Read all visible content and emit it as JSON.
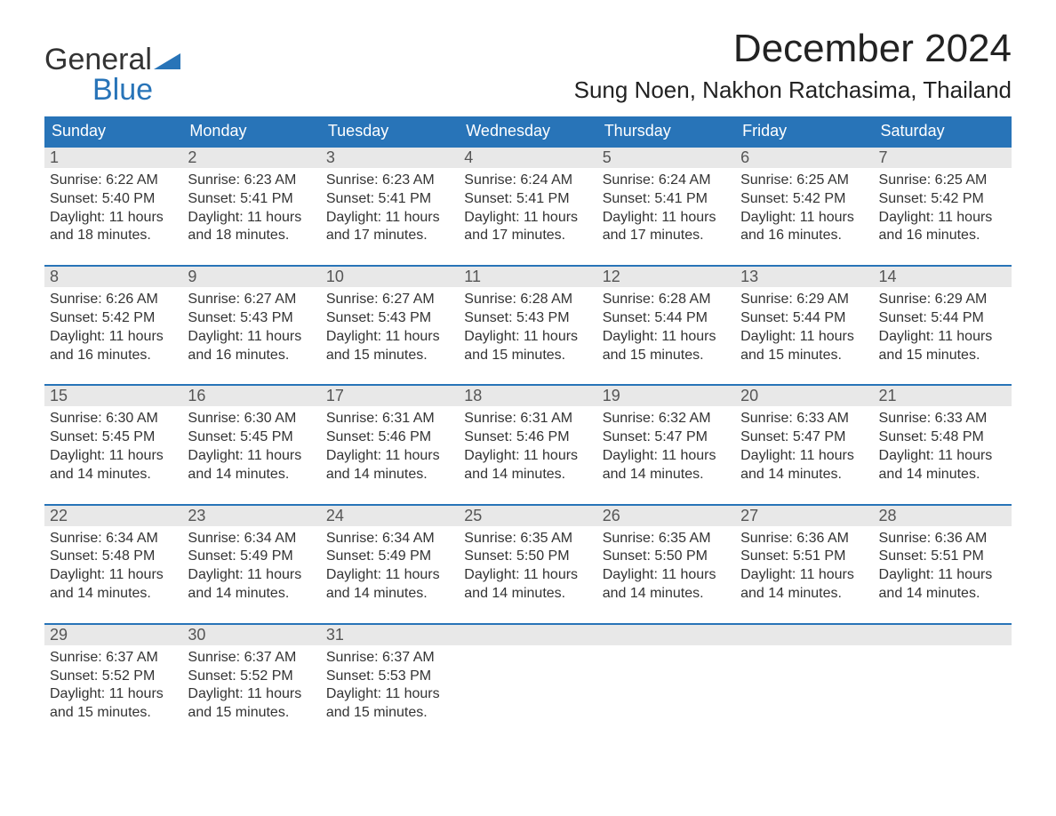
{
  "brand": {
    "line1": "General",
    "line2": "Blue",
    "accent_color": "#2874b8"
  },
  "title": "December 2024",
  "location": "Sung Noen, Nakhon Ratchasima, Thailand",
  "colors": {
    "header_bg": "#2874b8",
    "header_text": "#ffffff",
    "daynum_bg": "#e8e8e8",
    "daynum_text": "#555555",
    "body_text": "#333333",
    "week_border": "#2874b8",
    "page_bg": "#ffffff"
  },
  "typography": {
    "title_fontsize": 44,
    "location_fontsize": 26,
    "dow_fontsize": 18,
    "daynum_fontsize": 18,
    "detail_fontsize": 16,
    "font_family": "Arial"
  },
  "days_of_week": [
    "Sunday",
    "Monday",
    "Tuesday",
    "Wednesday",
    "Thursday",
    "Friday",
    "Saturday"
  ],
  "weeks": [
    {
      "cells": [
        {
          "n": "1",
          "sr": "Sunrise: 6:22 AM",
          "ss": "Sunset: 5:40 PM",
          "dl": "Daylight: 11 hours and 18 minutes."
        },
        {
          "n": "2",
          "sr": "Sunrise: 6:23 AM",
          "ss": "Sunset: 5:41 PM",
          "dl": "Daylight: 11 hours and 18 minutes."
        },
        {
          "n": "3",
          "sr": "Sunrise: 6:23 AM",
          "ss": "Sunset: 5:41 PM",
          "dl": "Daylight: 11 hours and 17 minutes."
        },
        {
          "n": "4",
          "sr": "Sunrise: 6:24 AM",
          "ss": "Sunset: 5:41 PM",
          "dl": "Daylight: 11 hours and 17 minutes."
        },
        {
          "n": "5",
          "sr": "Sunrise: 6:24 AM",
          "ss": "Sunset: 5:41 PM",
          "dl": "Daylight: 11 hours and 17 minutes."
        },
        {
          "n": "6",
          "sr": "Sunrise: 6:25 AM",
          "ss": "Sunset: 5:42 PM",
          "dl": "Daylight: 11 hours and 16 minutes."
        },
        {
          "n": "7",
          "sr": "Sunrise: 6:25 AM",
          "ss": "Sunset: 5:42 PM",
          "dl": "Daylight: 11 hours and 16 minutes."
        }
      ]
    },
    {
      "cells": [
        {
          "n": "8",
          "sr": "Sunrise: 6:26 AM",
          "ss": "Sunset: 5:42 PM",
          "dl": "Daylight: 11 hours and 16 minutes."
        },
        {
          "n": "9",
          "sr": "Sunrise: 6:27 AM",
          "ss": "Sunset: 5:43 PM",
          "dl": "Daylight: 11 hours and 16 minutes."
        },
        {
          "n": "10",
          "sr": "Sunrise: 6:27 AM",
          "ss": "Sunset: 5:43 PM",
          "dl": "Daylight: 11 hours and 15 minutes."
        },
        {
          "n": "11",
          "sr": "Sunrise: 6:28 AM",
          "ss": "Sunset: 5:43 PM",
          "dl": "Daylight: 11 hours and 15 minutes."
        },
        {
          "n": "12",
          "sr": "Sunrise: 6:28 AM",
          "ss": "Sunset: 5:44 PM",
          "dl": "Daylight: 11 hours and 15 minutes."
        },
        {
          "n": "13",
          "sr": "Sunrise: 6:29 AM",
          "ss": "Sunset: 5:44 PM",
          "dl": "Daylight: 11 hours and 15 minutes."
        },
        {
          "n": "14",
          "sr": "Sunrise: 6:29 AM",
          "ss": "Sunset: 5:44 PM",
          "dl": "Daylight: 11 hours and 15 minutes."
        }
      ]
    },
    {
      "cells": [
        {
          "n": "15",
          "sr": "Sunrise: 6:30 AM",
          "ss": "Sunset: 5:45 PM",
          "dl": "Daylight: 11 hours and 14 minutes."
        },
        {
          "n": "16",
          "sr": "Sunrise: 6:30 AM",
          "ss": "Sunset: 5:45 PM",
          "dl": "Daylight: 11 hours and 14 minutes."
        },
        {
          "n": "17",
          "sr": "Sunrise: 6:31 AM",
          "ss": "Sunset: 5:46 PM",
          "dl": "Daylight: 11 hours and 14 minutes."
        },
        {
          "n": "18",
          "sr": "Sunrise: 6:31 AM",
          "ss": "Sunset: 5:46 PM",
          "dl": "Daylight: 11 hours and 14 minutes."
        },
        {
          "n": "19",
          "sr": "Sunrise: 6:32 AM",
          "ss": "Sunset: 5:47 PM",
          "dl": "Daylight: 11 hours and 14 minutes."
        },
        {
          "n": "20",
          "sr": "Sunrise: 6:33 AM",
          "ss": "Sunset: 5:47 PM",
          "dl": "Daylight: 11 hours and 14 minutes."
        },
        {
          "n": "21",
          "sr": "Sunrise: 6:33 AM",
          "ss": "Sunset: 5:48 PM",
          "dl": "Daylight: 11 hours and 14 minutes."
        }
      ]
    },
    {
      "cells": [
        {
          "n": "22",
          "sr": "Sunrise: 6:34 AM",
          "ss": "Sunset: 5:48 PM",
          "dl": "Daylight: 11 hours and 14 minutes."
        },
        {
          "n": "23",
          "sr": "Sunrise: 6:34 AM",
          "ss": "Sunset: 5:49 PM",
          "dl": "Daylight: 11 hours and 14 minutes."
        },
        {
          "n": "24",
          "sr": "Sunrise: 6:34 AM",
          "ss": "Sunset: 5:49 PM",
          "dl": "Daylight: 11 hours and 14 minutes."
        },
        {
          "n": "25",
          "sr": "Sunrise: 6:35 AM",
          "ss": "Sunset: 5:50 PM",
          "dl": "Daylight: 11 hours and 14 minutes."
        },
        {
          "n": "26",
          "sr": "Sunrise: 6:35 AM",
          "ss": "Sunset: 5:50 PM",
          "dl": "Daylight: 11 hours and 14 minutes."
        },
        {
          "n": "27",
          "sr": "Sunrise: 6:36 AM",
          "ss": "Sunset: 5:51 PM",
          "dl": "Daylight: 11 hours and 14 minutes."
        },
        {
          "n": "28",
          "sr": "Sunrise: 6:36 AM",
          "ss": "Sunset: 5:51 PM",
          "dl": "Daylight: 11 hours and 14 minutes."
        }
      ]
    },
    {
      "cells": [
        {
          "n": "29",
          "sr": "Sunrise: 6:37 AM",
          "ss": "Sunset: 5:52 PM",
          "dl": "Daylight: 11 hours and 15 minutes."
        },
        {
          "n": "30",
          "sr": "Sunrise: 6:37 AM",
          "ss": "Sunset: 5:52 PM",
          "dl": "Daylight: 11 hours and 15 minutes."
        },
        {
          "n": "31",
          "sr": "Sunrise: 6:37 AM",
          "ss": "Sunset: 5:53 PM",
          "dl": "Daylight: 11 hours and 15 minutes."
        },
        {
          "n": "",
          "sr": "",
          "ss": "",
          "dl": ""
        },
        {
          "n": "",
          "sr": "",
          "ss": "",
          "dl": ""
        },
        {
          "n": "",
          "sr": "",
          "ss": "",
          "dl": ""
        },
        {
          "n": "",
          "sr": "",
          "ss": "",
          "dl": ""
        }
      ]
    }
  ]
}
